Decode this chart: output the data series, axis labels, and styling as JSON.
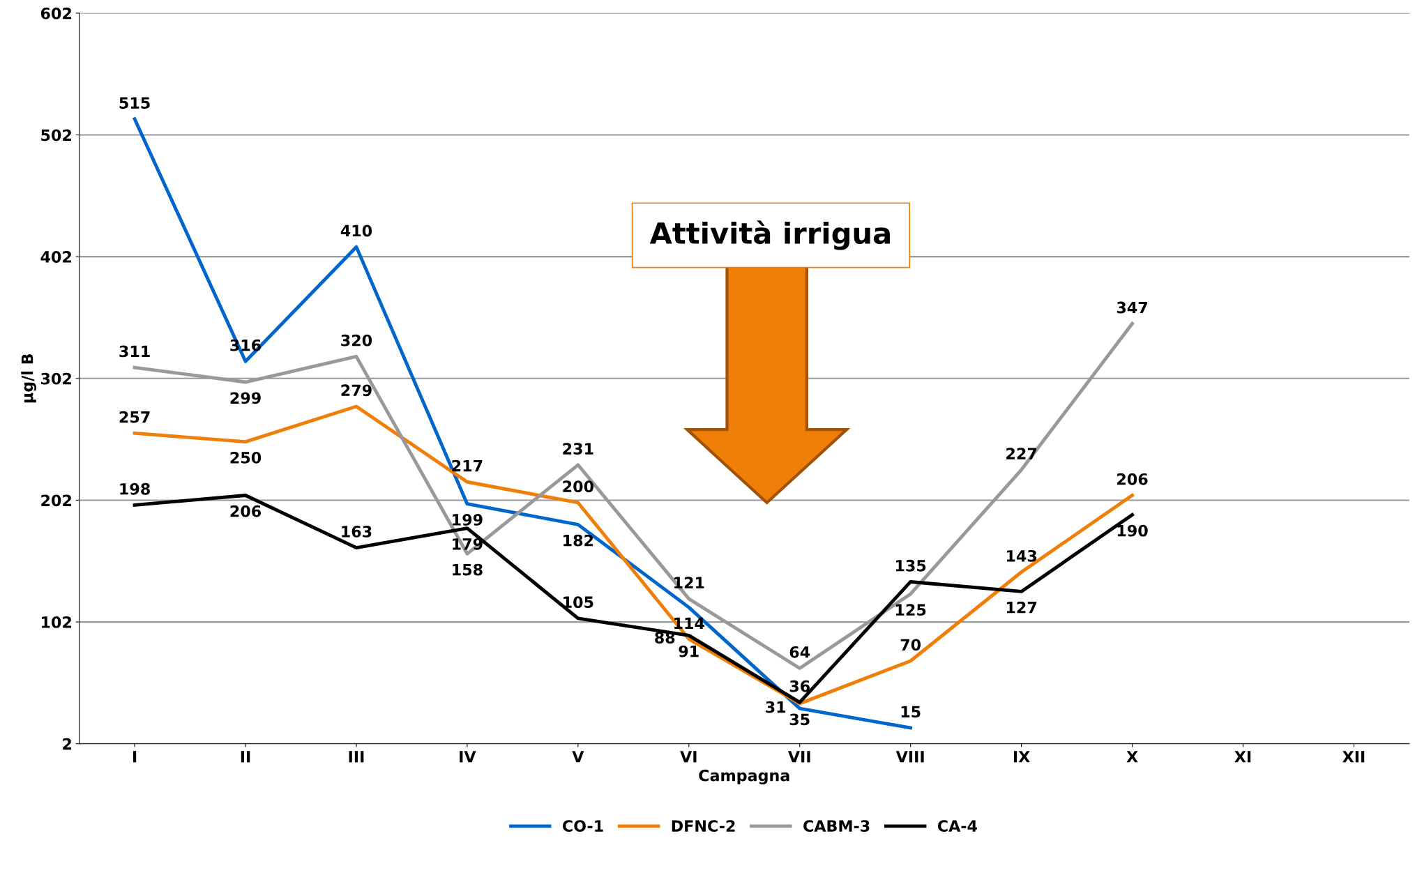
{
  "chart_data": {
    "type": "line",
    "xlabel": "Campagna",
    "ylabel": "µg/l B",
    "categories": [
      "I",
      "II",
      "III",
      "IV",
      "V",
      "VI",
      "VII",
      "VIII",
      "IX",
      "X",
      "XI",
      "XII"
    ],
    "series": [
      {
        "name": "CO-1",
        "color": "#0066cc",
        "values": [
          515,
          316,
          410,
          199,
          182,
          114,
          31,
          15,
          null,
          null,
          null,
          null
        ]
      },
      {
        "name": "DFNC-2",
        "color": "#f07f09",
        "values": [
          257,
          250,
          279,
          217,
          200,
          88,
          35,
          70,
          143,
          206,
          null,
          null
        ]
      },
      {
        "name": "CABM-3",
        "color": "#999999",
        "values": [
          311,
          299,
          320,
          158,
          231,
          121,
          64,
          125,
          227,
          347,
          null,
          null
        ]
      },
      {
        "name": "CA-4",
        "color": "#000000",
        "values": [
          198,
          206,
          163,
          179,
          105,
          91,
          36,
          135,
          127,
          190,
          null,
          null
        ]
      }
    ],
    "ylim": [
      2,
      602
    ],
    "yticks": [
      2,
      102,
      202,
      302,
      402,
      502,
      602
    ],
    "grid": "y",
    "legend": "bottom",
    "data_labels": true,
    "marker": "none",
    "line_style": "solid",
    "annotations": [
      "Attività irrigua"
    ]
  }
}
